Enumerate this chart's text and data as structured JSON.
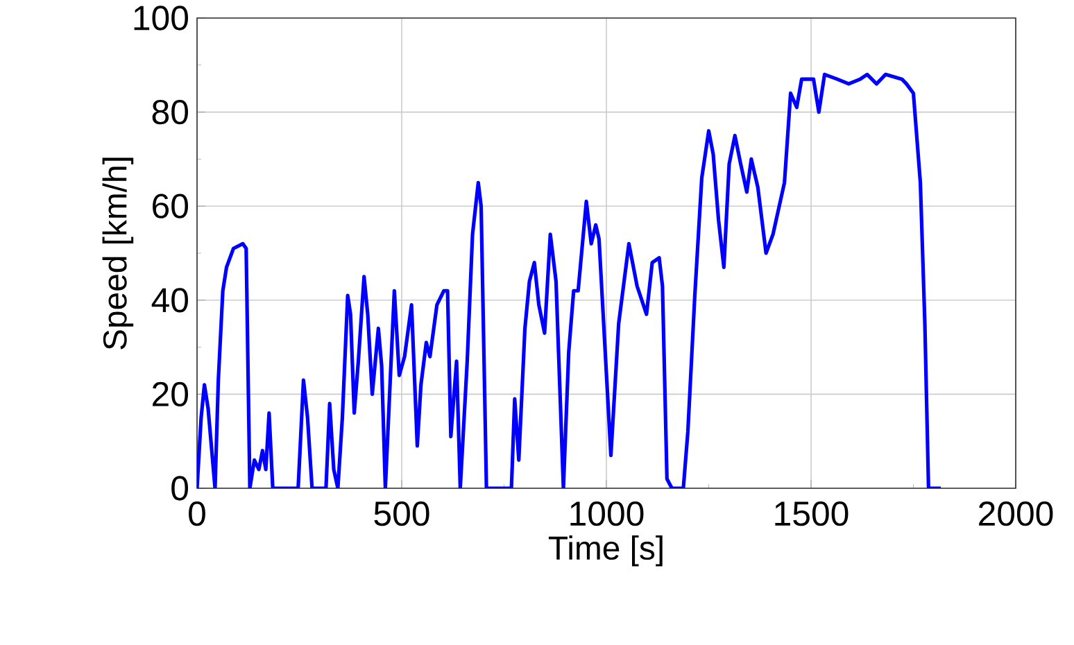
{
  "chart_data": {
    "type": "line",
    "xlabel": "Time [s]",
    "ylabel": "Speed [km/h]",
    "xlim": [
      0,
      2000
    ],
    "ylim": [
      0,
      100
    ],
    "xticks": [
      0,
      500,
      1000,
      1500,
      2000
    ],
    "yticks": [
      0,
      20,
      40,
      60,
      80,
      100
    ],
    "grid": true,
    "series": [
      {
        "color": "#0000ff",
        "x": [
          0,
          10,
          18,
          27,
          44,
          52,
          63,
          72,
          89,
          112,
          120,
          129,
          140,
          151,
          160,
          168,
          176,
          185,
          219,
          247,
          260,
          270,
          281,
          315,
          324,
          334,
          344,
          355,
          368,
          375,
          384,
          394,
          408,
          417,
          428,
          443,
          451,
          460,
          473,
          482,
          494,
          507,
          524,
          538,
          547,
          560,
          569,
          586,
          603,
          612,
          620,
          634,
          643,
          660,
          673,
          687,
          694,
          707,
          750,
          768,
          776,
          786,
          801,
          812,
          824,
          835,
          849,
          863,
          877,
          895,
          908,
          920,
          931,
          951,
          963,
          974,
          982,
          1011,
          1030,
          1055,
          1075,
          1098,
          1112,
          1129,
          1137,
          1148,
          1160,
          1188,
          1199,
          1216,
          1233,
          1250,
          1261,
          1274,
          1287,
          1300,
          1314,
          1328,
          1343,
          1354,
          1370,
          1390,
          1407,
          1435,
          1450,
          1465,
          1477,
          1506,
          1519,
          1533,
          1564,
          1592,
          1620,
          1637,
          1660,
          1682,
          1722,
          1733,
          1750,
          1767,
          1778,
          1787,
          1817
        ],
        "values": [
          0,
          15,
          22,
          17,
          0,
          23,
          42,
          47,
          51,
          52,
          51,
          0,
          6,
          4,
          8,
          4,
          16,
          0,
          0,
          0,
          23,
          15,
          0,
          0,
          18,
          4,
          0,
          15,
          41,
          37,
          16,
          27,
          45,
          37,
          20,
          34,
          26,
          0,
          25,
          42,
          24,
          28,
          39,
          9,
          22,
          31,
          28,
          39,
          42,
          42,
          11,
          27,
          0,
          27,
          54,
          65,
          60,
          0,
          0,
          0,
          19,
          6,
          34,
          44,
          48,
          39,
          33,
          54,
          44,
          0,
          29,
          42,
          42,
          61,
          52,
          56,
          53,
          7,
          35,
          52,
          43,
          37,
          48,
          49,
          43,
          2,
          0,
          0,
          12,
          41,
          66,
          76,
          71,
          57,
          47,
          69,
          75,
          69,
          63,
          70,
          64,
          50,
          54,
          65,
          84,
          81,
          87,
          87,
          80,
          88,
          87,
          86,
          87,
          88,
          86,
          88,
          87,
          86,
          84,
          65,
          35,
          0,
          0
        ]
      }
    ]
  }
}
